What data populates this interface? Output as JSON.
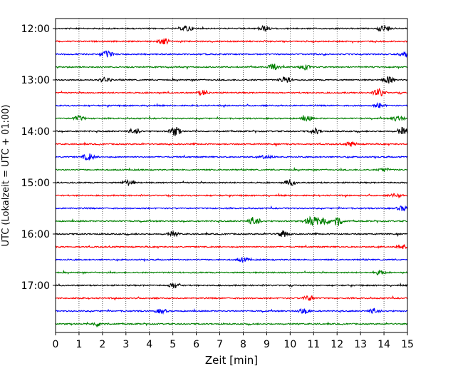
{
  "chart_data": {
    "type": "line",
    "title": "",
    "xlabel": "Zeit  [min]",
    "ylabel": "UTC (Lokalzeit = UTC + 01:00)",
    "xlim": [
      0,
      15
    ],
    "xticks": [
      0,
      1,
      2,
      3,
      4,
      5,
      6,
      7,
      8,
      9,
      10,
      11,
      12,
      13,
      14,
      15
    ],
    "x_grid": "dotted vertical lines at each minute",
    "yticks": [
      {
        "label": "12:00",
        "row": 0
      },
      {
        "label": "13:00",
        "row": 4
      },
      {
        "label": "14:00",
        "row": 8
      },
      {
        "label": "15:00",
        "row": 12
      },
      {
        "label": "16:00",
        "row": 16
      },
      {
        "label": "17:00",
        "row": 20
      }
    ],
    "trace_minutes": 15,
    "trace_colors": [
      "#000000",
      "#ff0000",
      "#0000ff",
      "#008000"
    ],
    "traces": [
      {
        "start": "12:00",
        "events": [
          [
            5.6,
            1.0
          ],
          [
            8.9,
            0.9
          ],
          [
            14.0,
            1.2
          ]
        ]
      },
      {
        "start": "12:15",
        "events": [
          [
            4.6,
            1.0
          ]
        ]
      },
      {
        "start": "12:30",
        "events": [
          [
            2.2,
            1.0
          ],
          [
            14.9,
            0.7
          ]
        ]
      },
      {
        "start": "12:45",
        "events": [
          [
            9.3,
            1.0
          ],
          [
            10.6,
            0.8
          ]
        ]
      },
      {
        "start": "13:00",
        "events": [
          [
            2.1,
            0.8
          ],
          [
            9.8,
            1.1
          ],
          [
            14.2,
            1.2
          ]
        ]
      },
      {
        "start": "13:15",
        "events": [
          [
            6.3,
            0.8
          ],
          [
            13.8,
            1.3
          ]
        ]
      },
      {
        "start": "13:30",
        "events": [
          [
            13.8,
            0.7
          ]
        ]
      },
      {
        "start": "13:45",
        "events": [
          [
            1.0,
            0.8
          ],
          [
            10.7,
            0.9
          ],
          [
            14.6,
            1.0
          ]
        ]
      },
      {
        "start": "14:00",
        "events": [
          [
            3.4,
            1.1
          ],
          [
            5.1,
            1.4
          ],
          [
            11.1,
            0.9
          ],
          [
            14.8,
            1.2
          ]
        ]
      },
      {
        "start": "14:15",
        "events": [
          [
            12.6,
            0.7
          ]
        ]
      },
      {
        "start": "14:30",
        "events": [
          [
            1.4,
            1.1
          ],
          [
            9.0,
            0.6
          ]
        ]
      },
      {
        "start": "14:45",
        "events": [
          [
            14.0,
            0.6
          ]
        ]
      },
      {
        "start": "15:00",
        "events": [
          [
            3.1,
            0.9
          ],
          [
            10.0,
            0.9
          ]
        ]
      },
      {
        "start": "15:15",
        "events": [
          [
            14.5,
            0.6
          ]
        ]
      },
      {
        "start": "15:30",
        "events": [
          [
            14.8,
            0.8
          ]
        ]
      },
      {
        "start": "15:45",
        "events": [
          [
            8.5,
            1.6
          ],
          [
            10.9,
            2.0
          ],
          [
            11.4,
            1.5
          ],
          [
            12.0,
            1.6
          ]
        ]
      },
      {
        "start": "16:00",
        "events": [
          [
            5.0,
            0.7
          ],
          [
            9.7,
            1.1
          ]
        ]
      },
      {
        "start": "16:15",
        "events": [
          [
            14.8,
            0.6
          ]
        ]
      },
      {
        "start": "16:30",
        "events": [
          [
            8.0,
            0.6
          ]
        ]
      },
      {
        "start": "16:45",
        "events": [
          [
            13.8,
            0.7
          ]
        ]
      },
      {
        "start": "17:00",
        "events": [
          [
            5.1,
            0.9
          ]
        ]
      },
      {
        "start": "17:15",
        "events": [
          [
            10.8,
            0.9
          ]
        ]
      },
      {
        "start": "17:30",
        "events": [
          [
            4.5,
            0.7
          ],
          [
            10.6,
            0.9
          ],
          [
            13.6,
            0.8
          ]
        ]
      },
      {
        "start": "17:45",
        "events": [
          [
            1.8,
            0.7
          ]
        ]
      }
    ]
  }
}
